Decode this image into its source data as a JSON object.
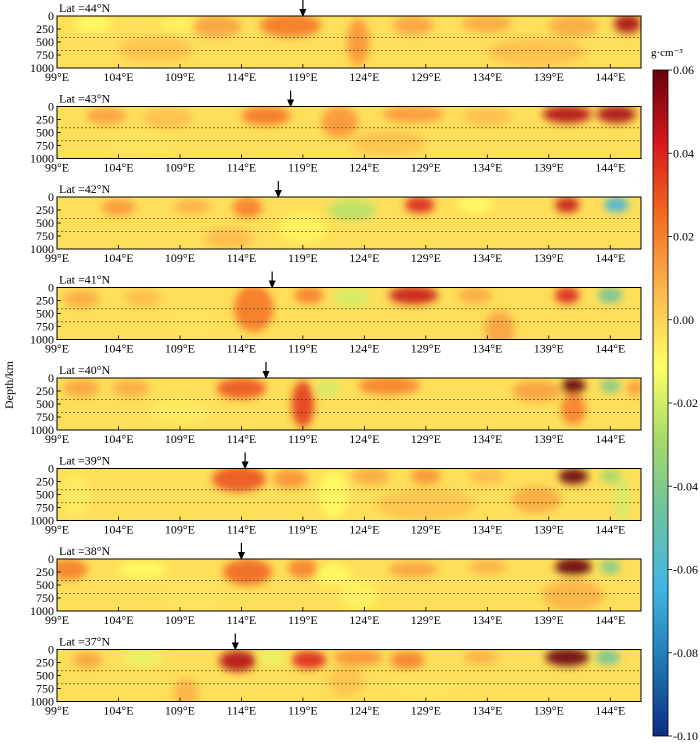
{
  "chart_data": {
    "type": "heatmap",
    "ylabel": "Depth/km",
    "x_ticks": [
      "99°E",
      "104°E",
      "109°E",
      "114°E",
      "119°E",
      "124°E",
      "129°E",
      "134°E",
      "139°E",
      "144°E"
    ],
    "x_tick_values": [
      99,
      104,
      109,
      114,
      119,
      124,
      129,
      134,
      139,
      144
    ],
    "xlim": [
      99,
      146.5
    ],
    "y_ticks": [
      "0",
      "250",
      "500",
      "750",
      "1000"
    ],
    "y_tick_values": [
      0,
      250,
      500,
      750,
      1000
    ],
    "ylim": [
      0,
      1000
    ],
    "dashed_depths": [
      410,
      660
    ],
    "colorbar": {
      "unit": "g·cm⁻³",
      "ticks": [
        "0.06",
        "0.04",
        "0.02",
        "0.00",
        "-0.02",
        "-0.04",
        "-0.06",
        "-0.08",
        "-0.10"
      ],
      "tick_values": [
        0.06,
        0.04,
        0.02,
        0.0,
        -0.02,
        -0.04,
        -0.06,
        -0.08,
        -0.1
      ],
      "range": [
        -0.1,
        0.06
      ],
      "colors": [
        "#0c2c84",
        "#1f78b4",
        "#41b6e4",
        "#6cc1a0",
        "#a6d96a",
        "#ffff66",
        "#fdb84c",
        "#f46d23",
        "#d7191c",
        "#67000d"
      ]
    },
    "panels": [
      {
        "title": "Lat =44°N",
        "arrow_lon": 119,
        "anomalies": [
          [
            102,
            150,
            1.5,
            170,
            -0.01
          ],
          [
            109,
            150,
            1.6,
            150,
            -0.008
          ],
          [
            112,
            200,
            2,
            200,
            0.012
          ],
          [
            118,
            180,
            2.5,
            220,
            0.022
          ],
          [
            123.5,
            500,
            0.9,
            450,
            0.015
          ],
          [
            128,
            180,
            1.6,
            180,
            0.012
          ],
          [
            134,
            150,
            2,
            170,
            0.01
          ],
          [
            141,
            200,
            2,
            200,
            0.01
          ],
          [
            145.4,
            150,
            1.1,
            180,
            0.05
          ],
          [
            107,
            650,
            3,
            250,
            0.004
          ],
          [
            138,
            700,
            4,
            250,
            0.005
          ]
        ]
      },
      {
        "title": "Lat =43°N",
        "arrow_lon": 118,
        "anomalies": [
          [
            103,
            180,
            1.6,
            170,
            0.012
          ],
          [
            108,
            220,
            2,
            200,
            0.005
          ],
          [
            116,
            180,
            2,
            180,
            0.022
          ],
          [
            122,
            300,
            1.5,
            300,
            0.015
          ],
          [
            128,
            150,
            2.5,
            160,
            0.014
          ],
          [
            134,
            200,
            2,
            160,
            0.006
          ],
          [
            140.5,
            150,
            2,
            170,
            0.048
          ],
          [
            144.5,
            150,
            1.6,
            170,
            0.05
          ],
          [
            106,
            700,
            3,
            250,
            -0.004
          ],
          [
            126,
            700,
            3,
            250,
            0.004
          ]
        ]
      },
      {
        "title": "Lat =42°N",
        "arrow_lon": 117,
        "anomalies": [
          [
            104,
            200,
            1.4,
            160,
            0.014
          ],
          [
            110,
            180,
            1.5,
            150,
            0.008
          ],
          [
            114.5,
            200,
            1.2,
            200,
            0.02
          ],
          [
            123,
            250,
            2,
            200,
            -0.025
          ],
          [
            128.5,
            150,
            1.2,
            160,
            0.04
          ],
          [
            133,
            150,
            1.5,
            160,
            -0.01
          ],
          [
            140.5,
            150,
            1,
            150,
            0.045
          ],
          [
            144.5,
            150,
            1,
            140,
            -0.065
          ],
          [
            119,
            600,
            2,
            300,
            -0.008
          ],
          [
            113,
            800,
            2,
            200,
            0.006
          ]
        ]
      },
      {
        "title": "Lat =41°N",
        "arrow_lon": 116.5,
        "anomalies": [
          [
            101,
            220,
            1.5,
            160,
            0.01
          ],
          [
            106,
            200,
            1.5,
            160,
            0.006
          ],
          [
            115,
            400,
            1.6,
            450,
            0.022
          ],
          [
            119.5,
            150,
            1.2,
            160,
            0.02
          ],
          [
            123,
            200,
            1.5,
            180,
            -0.02
          ],
          [
            128,
            150,
            2,
            170,
            0.045
          ],
          [
            133,
            150,
            1.4,
            150,
            0.01
          ],
          [
            140.5,
            150,
            1,
            160,
            0.04
          ],
          [
            144,
            150,
            1,
            150,
            -0.045
          ],
          [
            135,
            800,
            1.2,
            350,
            0.012
          ],
          [
            110,
            700,
            2.5,
            250,
            -0.004
          ]
        ]
      },
      {
        "title": "Lat =40°N",
        "arrow_lon": 116,
        "anomalies": [
          [
            101,
            200,
            1.5,
            160,
            0.012
          ],
          [
            105,
            200,
            1.5,
            160,
            0.01
          ],
          [
            114,
            200,
            2,
            200,
            0.03
          ],
          [
            119,
            500,
            0.9,
            450,
            0.035
          ],
          [
            121,
            200,
            1,
            160,
            -0.02
          ],
          [
            126,
            150,
            2.5,
            170,
            0.02
          ],
          [
            138,
            250,
            2,
            200,
            0.012
          ],
          [
            141,
            150,
            1,
            160,
            0.07
          ],
          [
            144,
            150,
            0.8,
            140,
            -0.04
          ],
          [
            146,
            200,
            0.6,
            150,
            0.015
          ],
          [
            109,
            650,
            2.5,
            250,
            -0.006
          ],
          [
            141,
            600,
            1,
            300,
            0.02
          ]
        ]
      },
      {
        "title": "Lat =39°N",
        "arrow_lon": 114.3,
        "anomalies": [
          [
            100.5,
            500,
            1.2,
            450,
            -0.006
          ],
          [
            113.8,
            200,
            2.2,
            250,
            0.03
          ],
          [
            118,
            200,
            1.4,
            180,
            0.016
          ],
          [
            121.5,
            500,
            1.2,
            450,
            -0.01
          ],
          [
            124.5,
            150,
            1.5,
            170,
            0.01
          ],
          [
            129,
            150,
            1.2,
            150,
            0.016
          ],
          [
            134,
            150,
            1.4,
            150,
            0.006
          ],
          [
            141,
            150,
            1.2,
            150,
            0.065
          ],
          [
            144,
            150,
            0.8,
            140,
            -0.03
          ],
          [
            145,
            600,
            0.6,
            450,
            -0.02
          ],
          [
            129,
            700,
            4,
            300,
            0.004
          ],
          [
            138,
            600,
            2,
            250,
            0.01
          ]
        ]
      },
      {
        "title": "Lat =38°N",
        "arrow_lon": 114,
        "anomalies": [
          [
            100,
            200,
            1.5,
            200,
            0.02
          ],
          [
            106,
            200,
            2,
            170,
            -0.01
          ],
          [
            114.5,
            250,
            2,
            250,
            0.026
          ],
          [
            119,
            180,
            1.2,
            180,
            0.02
          ],
          [
            121.5,
            300,
            1.4,
            200,
            -0.01
          ],
          [
            123.5,
            700,
            1.5,
            300,
            -0.008
          ],
          [
            128,
            200,
            2,
            150,
            0.012
          ],
          [
            134,
            150,
            1.5,
            150,
            0.008
          ],
          [
            141,
            150,
            1.5,
            170,
            0.06
          ],
          [
            144,
            150,
            0.8,
            140,
            -0.04
          ],
          [
            141,
            700,
            2.5,
            300,
            0.008
          ],
          [
            110,
            700,
            3,
            300,
            -0.004
          ]
        ]
      },
      {
        "title": "Lat =37°N",
        "arrow_lon": 113.5,
        "anomalies": [
          [
            101.5,
            200,
            1.2,
            150,
            0.012
          ],
          [
            106,
            150,
            1.6,
            160,
            -0.016
          ],
          [
            113.7,
            220,
            1.5,
            200,
            0.048
          ],
          [
            116.5,
            150,
            1,
            150,
            -0.016
          ],
          [
            119.5,
            200,
            1.4,
            170,
            0.04
          ],
          [
            123.5,
            150,
            2,
            150,
            0.016
          ],
          [
            127.5,
            200,
            1.4,
            170,
            0.02
          ],
          [
            133.5,
            150,
            1.4,
            150,
            0.008
          ],
          [
            140.5,
            150,
            1.8,
            170,
            0.07
          ],
          [
            143.8,
            150,
            1,
            140,
            -0.045
          ],
          [
            109.5,
            850,
            1,
            300,
            0.008
          ],
          [
            129,
            700,
            3,
            250,
            -0.004
          ],
          [
            122.5,
            600,
            1.5,
            300,
            0.004
          ]
        ]
      }
    ]
  }
}
